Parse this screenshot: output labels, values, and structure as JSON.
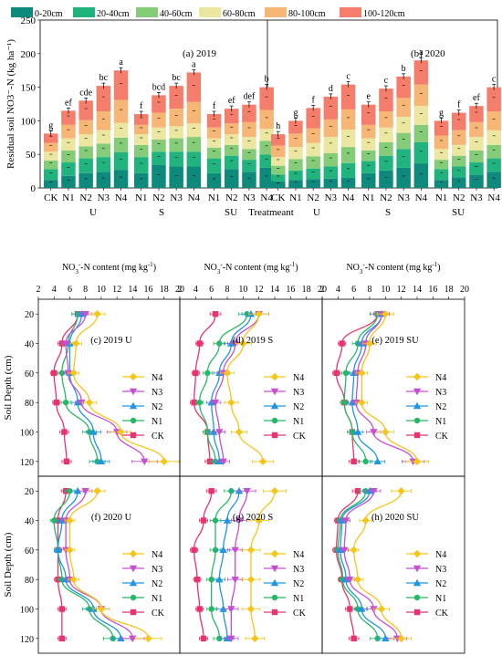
{
  "legend_top": {
    "items": [
      {
        "label": "0-20cm",
        "color": "#0e8a7c"
      },
      {
        "label": "20-40cm",
        "color": "#20b37d"
      },
      {
        "label": "40-60cm",
        "color": "#84cc78"
      },
      {
        "label": "60-80cm",
        "color": "#ebe6a0"
      },
      {
        "label": "80-100cm",
        "color": "#f6b676"
      },
      {
        "label": "100-120cm",
        "color": "#f47e6b"
      }
    ]
  },
  "chart_data": [
    {
      "type": "bar",
      "stacked": true,
      "panels": [
        {
          "panel_label": "(a) 2019",
          "categories": [
            "CK",
            "N1",
            "N2",
            "N3",
            "N4",
            "N1",
            "N2",
            "N3",
            "N4",
            "N1",
            "N2",
            "N3",
            "N4"
          ],
          "group_labels": [
            "U",
            "S",
            "SU"
          ],
          "letters": [
            "g",
            "ef",
            "cde",
            "bc",
            "a",
            "f",
            "bcd",
            "bc",
            "a",
            "f",
            "ef",
            "def",
            "b"
          ],
          "layers": [
            [
              12,
              18,
              22,
              24,
              27,
              22,
              34,
              32,
              32,
              22,
              28,
              24,
              30
            ],
            [
              16,
              20,
              22,
              22,
              26,
              24,
              20,
              22,
              22,
              22,
              20,
              18,
              20
            ],
            [
              13,
              18,
              18,
              20,
              22,
              18,
              18,
              20,
              22,
              16,
              16,
              16,
              20
            ],
            [
              13,
              18,
              18,
              20,
              22,
              16,
              18,
              18,
              20,
              14,
              16,
              18,
              18
            ],
            [
              13,
              20,
              21,
              28,
              34,
              14,
              22,
              26,
              32,
              16,
              16,
              22,
              28
            ],
            [
              14,
              21,
              29,
              38,
              44,
              16,
              26,
              34,
              44,
              20,
              22,
              26,
              34
            ]
          ],
          "totals": [
            81,
            115,
            130,
            152,
            175,
            110,
            138,
            152,
            172,
            110,
            118,
            124,
            150
          ]
        },
        {
          "panel_label": "(b) 2020",
          "categories": [
            "CK",
            "N1",
            "N2",
            "N3",
            "N4",
            "N1",
            "N2",
            "N3",
            "N4",
            "N1",
            "N2",
            "N3",
            "N4"
          ],
          "group_labels": [
            "U",
            "S",
            "SU"
          ],
          "letters": [
            "h",
            "g",
            "f",
            "d",
            "c",
            "e",
            "c",
            "b",
            "a",
            "g",
            "f",
            "ef",
            "c"
          ],
          "layers": [
            [
              10,
              12,
              13,
              14,
              15,
              22,
              26,
              30,
              36,
              12,
              16,
              20,
              24
            ],
            [
              10,
              14,
              16,
              18,
              22,
              18,
              22,
              28,
              32,
              16,
              16,
              18,
              20
            ],
            [
              13,
              17,
              18,
              20,
              24,
              16,
              20,
              24,
              26,
              14,
              16,
              18,
              20
            ],
            [
              13,
              18,
              20,
              24,
              26,
              18,
              22,
              24,
              28,
              16,
              16,
              20,
              22
            ],
            [
              17,
              20,
              22,
              26,
              30,
              20,
              24,
              28,
              32,
              20,
              22,
              22,
              28
            ],
            [
              17,
              19,
              30,
              34,
              37,
              30,
              34,
              32,
              36,
              22,
              26,
              24,
              36
            ]
          ],
          "totals": [
            80,
            100,
            119,
            136,
            154,
            124,
            148,
            166,
            190,
            100,
            112,
            122,
            150
          ]
        }
      ],
      "xlabel": "Treatmeant",
      "ylabel": "Residual soil NO3⁻-N (kg ha⁻¹)",
      "ylim": [
        0,
        250
      ],
      "yticks": [
        0,
        50,
        100,
        150,
        200,
        250
      ]
    },
    {
      "type": "line",
      "orientation": "horizontal",
      "xlabel_prefix": "NO",
      "xlabel_sub": "3",
      "xlabel_sup": "-",
      "xlabel_main": "-N content (mg kg",
      "xlabel_sup2": "-1",
      "xlabel_close": ")",
      "xlim": [
        2,
        20
      ],
      "xticks": [
        2,
        4,
        6,
        8,
        10,
        12,
        14,
        16,
        18,
        20
      ],
      "ylabel": "Soil Depth (cm)",
      "ylim": [
        10,
        130
      ],
      "yticks": [
        20,
        40,
        60,
        80,
        100,
        120
      ],
      "depths": [
        20,
        40,
        60,
        80,
        100,
        120
      ],
      "series_meta": [
        {
          "name": "N4",
          "color": "#f5c518",
          "marker": "diamond"
        },
        {
          "name": "N3",
          "color": "#c64fd1",
          "marker": "tri-down"
        },
        {
          "name": "N2",
          "color": "#1f96e0",
          "marker": "tri-up"
        },
        {
          "name": "N1",
          "color": "#27b866",
          "marker": "circle"
        },
        {
          "name": "CK",
          "color": "#e8336e",
          "marker": "square"
        }
      ],
      "panels": [
        {
          "label": "(c) 2019 U",
          "series": [
            [
              9.5,
              6.8,
              6.5,
              8.5,
              12.5,
              18.0
            ],
            [
              8.0,
              5.5,
              5.8,
              7.5,
              12.0,
              15.5
            ],
            [
              7.5,
              6.0,
              6.0,
              7.0,
              9.0,
              10.0
            ],
            [
              7.0,
              5.8,
              5.0,
              5.5,
              8.5,
              9.5
            ],
            [
              7.0,
              5.0,
              4.0,
              4.3,
              5.3,
              5.6
            ]
          ]
        },
        {
          "label": "(d) 2019 S",
          "series": [
            [
              12.0,
              10.0,
              8.0,
              8.5,
              9.5,
              12.5
            ],
            [
              12.0,
              9.0,
              7.5,
              6.5,
              7.0,
              7.5
            ],
            [
              11.0,
              8.5,
              7.0,
              6.0,
              6.3,
              7.0
            ],
            [
              10.5,
              7.0,
              5.5,
              4.5,
              5.5,
              6.5
            ],
            [
              6.5,
              4.5,
              4.0,
              3.8,
              5.5,
              5.8
            ]
          ]
        },
        {
          "label": "(e) 2019 SU",
          "series": [
            [
              10.0,
              8.0,
              7.0,
              7.0,
              10.0,
              14.0
            ],
            [
              9.5,
              7.5,
              6.5,
              6.3,
              8.5,
              13.5
            ],
            [
              9.5,
              7.0,
              6.0,
              5.8,
              6.5,
              9.0
            ],
            [
              9.0,
              6.5,
              5.0,
              4.8,
              5.8,
              7.5
            ],
            [
              9.0,
              4.5,
              3.8,
              4.8,
              5.8,
              6.0
            ]
          ]
        },
        {
          "label": "(f) 2020 U",
          "series": [
            [
              9.5,
              6.0,
              6.0,
              6.5,
              10.0,
              16.0
            ],
            [
              8.0,
              5.5,
              5.5,
              6.0,
              10.0,
              14.0
            ],
            [
              7.0,
              5.0,
              4.5,
              5.5,
              9.0,
              12.5
            ],
            [
              6.0,
              4.0,
              4.5,
              5.0,
              8.5,
              11.5
            ],
            [
              5.5,
              4.5,
              4.5,
              4.5,
              5.0,
              5.0
            ]
          ]
        },
        {
          "label": "(g) 2020 S",
          "series": [
            [
              14.0,
              12.0,
              11.0,
              11.0,
              11.0,
              11.5
            ],
            [
              10.5,
              9.5,
              9.0,
              9.0,
              8.5,
              8.5
            ],
            [
              9.5,
              8.0,
              7.5,
              7.0,
              7.5,
              8.0
            ],
            [
              8.5,
              6.5,
              6.5,
              6.0,
              6.0,
              7.0
            ],
            [
              6.0,
              5.0,
              3.8,
              4.2,
              4.5,
              5.0
            ]
          ]
        },
        {
          "label": "(h) 2020 SU",
          "series": [
            [
              12.0,
              7.5,
              6.0,
              6.5,
              9.5,
              12.0
            ],
            [
              8.5,
              5.0,
              4.8,
              5.5,
              8.5,
              11.5
            ],
            [
              8.0,
              4.5,
              4.3,
              5.0,
              7.0,
              10.0
            ],
            [
              7.5,
              4.3,
              4.0,
              4.6,
              6.5,
              9.0
            ],
            [
              6.5,
              4.0,
              3.8,
              4.5,
              5.5,
              6.0
            ]
          ]
        }
      ]
    }
  ]
}
